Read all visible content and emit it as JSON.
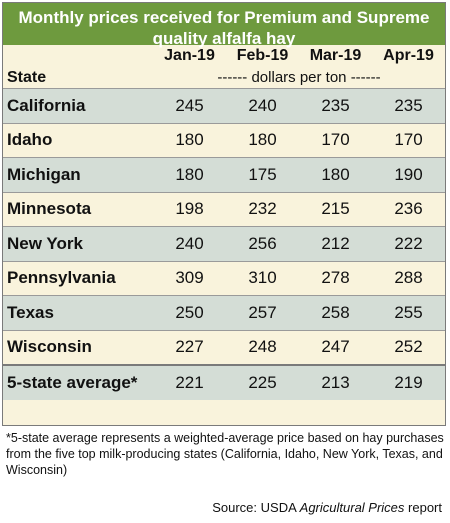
{
  "title": "Monthly prices received for Premium and Supreme\nquality alfalfa hay",
  "columns": {
    "state": "State",
    "months": [
      "Jan-19",
      "Feb-19",
      "Mar-19",
      "Apr-19"
    ],
    "units": "------ dollars per ton ------"
  },
  "chart_data": {
    "type": "table",
    "title": "Monthly prices received for Premium and Supreme quality alfalfa hay",
    "columns": [
      "Jan-19",
      "Feb-19",
      "Mar-19",
      "Apr-19"
    ],
    "units": "dollars per ton",
    "rows": [
      {
        "state": "California",
        "values": [
          245,
          240,
          235,
          235
        ]
      },
      {
        "state": "Idaho",
        "values": [
          180,
          180,
          170,
          170
        ]
      },
      {
        "state": "Michigan",
        "values": [
          180,
          175,
          180,
          190
        ]
      },
      {
        "state": "Minnesota",
        "values": [
          198,
          232,
          215,
          236
        ]
      },
      {
        "state": "New York",
        "values": [
          240,
          256,
          212,
          222
        ]
      },
      {
        "state": "Pennsylvania",
        "values": [
          309,
          310,
          278,
          288
        ]
      },
      {
        "state": "Texas",
        "values": [
          250,
          257,
          258,
          255
        ]
      },
      {
        "state": "Wisconsin",
        "values": [
          227,
          248,
          247,
          252
        ]
      }
    ],
    "average": {
      "state": "5-state average*",
      "values": [
        221,
        225,
        213,
        219
      ]
    }
  },
  "footnote": "*5-state average represents  a weighted-average price based on hay purchases from the five top milk-producing states (California, Idaho, New York, Texas, and Wisconsin)",
  "source": {
    "prefix": "Source: USDA ",
    "publication": "Agricultural Prices",
    "suffix": "  report"
  },
  "colors": {
    "title_bg": "#6e9a3e",
    "band": "#d4ddd6",
    "cream": "#f9f3dc"
  }
}
